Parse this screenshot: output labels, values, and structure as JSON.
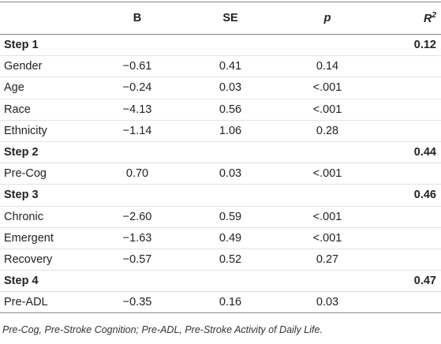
{
  "table": {
    "header": {
      "b": "B",
      "se": "SE",
      "p": "p",
      "r2": {
        "text": "R",
        "sup": "2"
      }
    },
    "rows": [
      {
        "label": "Step 1",
        "r2": "0.12"
      },
      {
        "label": "Gender",
        "b": "−0.61",
        "se": "0.41",
        "p": "0.14"
      },
      {
        "label": "Age",
        "b": "−0.24",
        "se": "0.03",
        "p": "<.001"
      },
      {
        "label": "Race",
        "b": "−4.13",
        "se": "0.56",
        "p": "<.001"
      },
      {
        "label": "Ethnicity",
        "b": "−1.14",
        "se": "1.06",
        "p": "0.28"
      },
      {
        "label": "Step 2",
        "r2": "0.44"
      },
      {
        "label": "Pre-Cog",
        "b": "0.70",
        "se": "0.03",
        "p": "<.001"
      },
      {
        "label": "Step 3",
        "r2": "0.46"
      },
      {
        "label": "Chronic",
        "b": "−2.60",
        "se": "0.59",
        "p": "<.001"
      },
      {
        "label": "Emergent",
        "b": "−1.63",
        "se": "0.49",
        "p": "<.001"
      },
      {
        "label": "Recovery",
        "b": "−0.57",
        "se": "0.52",
        "p": "0.27"
      },
      {
        "label": "Step 4",
        "r2": "0.47"
      },
      {
        "label": "Pre-ADL",
        "b": "−0.35",
        "se": "0.16",
        "p": "0.03"
      }
    ]
  },
  "footnote": "Pre-Cog, Pre-Stroke Cognition; Pre-ADL, Pre-Stroke Activity of Daily Life."
}
